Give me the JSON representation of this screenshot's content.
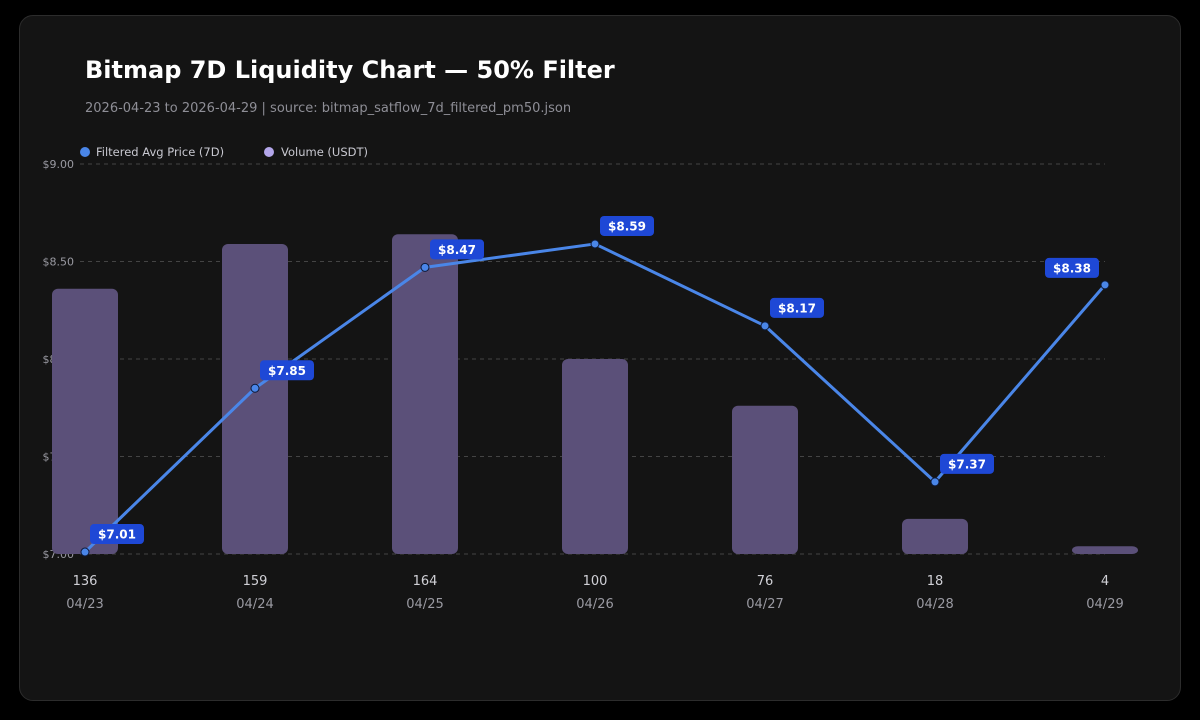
{
  "title": "Bitmap 7D Liquidity Chart — 50% Filter",
  "subtitle": "2026-04-23 to 2026-04-29 | source: bitmap_satflow_7d_filtered_pm50.json",
  "colors": {
    "background": "#141414",
    "price_line": "#4a86e8",
    "price_label_bg": "#1e48d6",
    "volume_bar": "#5b5079",
    "volume_legend": "#b3a6ea",
    "grid": "#444444",
    "axis_text": "#9a9aa2",
    "tick_text": "#d0d0d6"
  },
  "chart_data": {
    "type": "bar",
    "title": "Bitmap 7D Liquidity Chart — 50% Filter",
    "subtitle": "2026-04-23 to 2026-04-29 | source: bitmap_satflow_7d_filtered_pm50.json",
    "categories": [
      "04/23",
      "04/24",
      "04/25",
      "04/26",
      "04/27",
      "04/28",
      "04/29"
    ],
    "series": [
      {
        "name": "Filtered Avg Price (7D)",
        "type": "line",
        "values": [
          7.01,
          7.85,
          8.47,
          8.59,
          8.17,
          7.37,
          8.38
        ],
        "labels": [
          "$7.01",
          "$7.85",
          "$8.47",
          "$8.59",
          "$8.17",
          "$7.37",
          "$8.38"
        ]
      },
      {
        "name": "Volume (USDT)",
        "type": "bar",
        "values": [
          136,
          159,
          164,
          100,
          76,
          18,
          4
        ],
        "labels": [
          "136",
          "159",
          "164",
          "100",
          "76",
          "18",
          "4"
        ]
      }
    ],
    "y_ticks": [
      "$9.00",
      "$8.50",
      "$8.00",
      "$7.50",
      "$7.00"
    ],
    "y_tick_values": [
      9.0,
      8.5,
      8.0,
      7.5,
      7.0
    ],
    "ylim": [
      7.0,
      9.0
    ],
    "volume_max": 200,
    "grid": true,
    "legend_position": "top-left"
  }
}
